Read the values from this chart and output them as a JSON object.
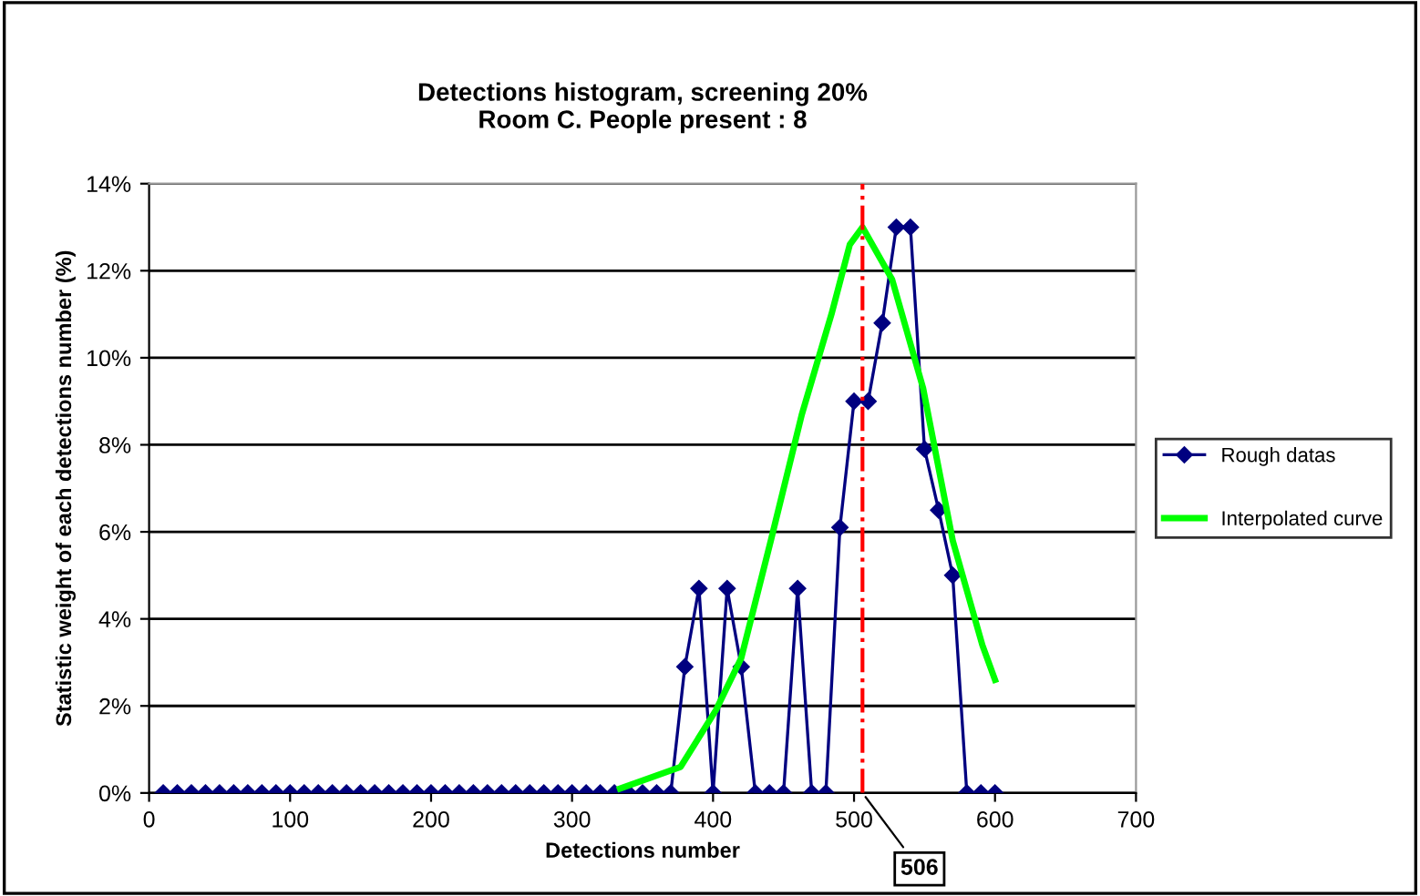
{
  "chart_data": {
    "type": "line",
    "title": "Detections histogram, screening 20%\nRoom C. People present : 8",
    "xlabel": "Detections number",
    "ylabel": "Statistic weight of each detections number (%)",
    "series": [
      {
        "name": "Rough datas",
        "color": "#000080",
        "marker": "diamond",
        "x": [
          10,
          20,
          30,
          40,
          50,
          60,
          70,
          80,
          90,
          100,
          110,
          120,
          130,
          140,
          150,
          160,
          170,
          180,
          190,
          200,
          210,
          220,
          230,
          240,
          250,
          260,
          270,
          280,
          290,
          300,
          310,
          320,
          330,
          340,
          350,
          360,
          370,
          380,
          390,
          400,
          410,
          420,
          430,
          440,
          450,
          460,
          470,
          480,
          490,
          500,
          510,
          520,
          530,
          540,
          550,
          560,
          570,
          580,
          590,
          600
        ],
        "values": [
          0,
          0,
          0,
          0,
          0,
          0,
          0,
          0,
          0,
          0,
          0,
          0,
          0,
          0,
          0,
          0,
          0,
          0,
          0,
          0,
          0,
          0,
          0,
          0,
          0,
          0,
          0,
          0,
          0,
          0,
          0,
          0,
          0,
          0,
          0,
          0,
          0,
          2.9,
          4.7,
          0,
          4.7,
          2.9,
          0,
          0,
          0,
          4.7,
          0,
          0,
          6.1,
          9.0,
          9.0,
          10.8,
          13.0,
          13.0,
          7.9,
          6.5,
          5.0,
          0,
          0,
          0
        ]
      },
      {
        "name": "Interpolated curve",
        "color": "#00ff00",
        "marker": "none",
        "x": [
          334,
          377,
          402,
          420,
          441,
          463,
          484,
          497,
          506,
          527,
          549,
          570,
          591,
          600
        ],
        "values": [
          0.1,
          0.6,
          1.9,
          3.1,
          5.8,
          8.7,
          11.0,
          12.6,
          13.0,
          11.8,
          9.3,
          5.8,
          3.4,
          2.6
        ]
      }
    ],
    "xlim": [
      0,
      700
    ],
    "xticks": [
      0,
      100,
      200,
      300,
      400,
      500,
      600,
      700
    ],
    "ylim": [
      0,
      14
    ],
    "yticks": [
      {
        "value": 0,
        "label": "0%"
      },
      {
        "value": 2,
        "label": "2%"
      },
      {
        "value": 4,
        "label": "4%"
      },
      {
        "value": 6,
        "label": "6%"
      },
      {
        "value": 8,
        "label": "8%"
      },
      {
        "value": 10,
        "label": "10%"
      },
      {
        "value": 12,
        "label": "12%"
      },
      {
        "value": 14,
        "label": "14%"
      }
    ],
    "grid": "y",
    "legend": "right",
    "ref_lines": [
      {
        "axis": "x",
        "value": 506,
        "label": "506",
        "color": "#ff0000",
        "line_style": "dashdot"
      }
    ]
  }
}
